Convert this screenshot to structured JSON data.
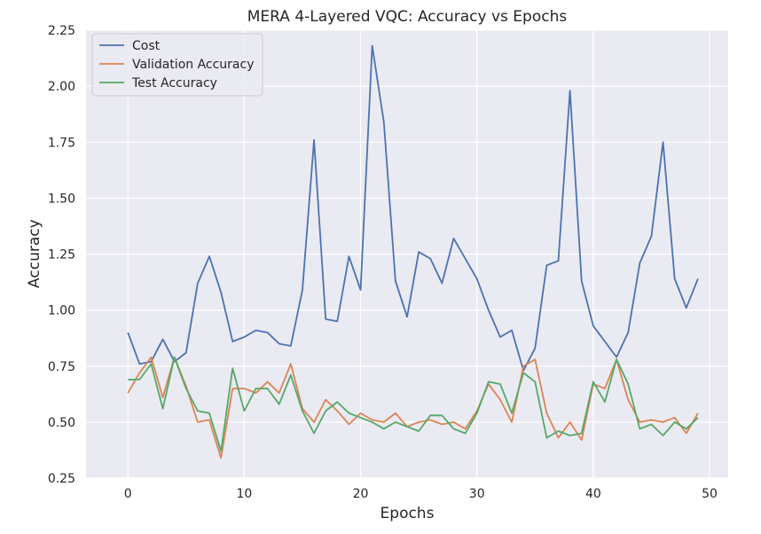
{
  "chart_data": {
    "type": "line",
    "title": "MERA 4-Layered VQC: Accuracy vs Epochs",
    "xlabel": "Epochs",
    "ylabel": "Accuracy",
    "xlim": [
      -3.6,
      51.6
    ],
    "ylim": [
      0.25,
      2.25
    ],
    "xticks": [
      "0",
      "10",
      "20",
      "30",
      "40",
      "50"
    ],
    "yticks": [
      "0.25",
      "0.50",
      "0.75",
      "1.00",
      "1.25",
      "1.50",
      "1.75",
      "2.00",
      "2.25"
    ],
    "grid": true,
    "legend_position": "top-left",
    "background": "#eaeaf2",
    "x": [
      0,
      1,
      2,
      3,
      4,
      5,
      6,
      7,
      8,
      9,
      10,
      11,
      12,
      13,
      14,
      15,
      16,
      17,
      18,
      19,
      20,
      21,
      22,
      23,
      24,
      25,
      26,
      27,
      28,
      29,
      30,
      31,
      32,
      33,
      34,
      35,
      36,
      37,
      38,
      39,
      40,
      41,
      42,
      43,
      44,
      45,
      46,
      47,
      48,
      49
    ],
    "series": [
      {
        "name": "Cost",
        "color": "#4c72b0",
        "values": [
          0.9,
          0.76,
          0.77,
          0.87,
          0.77,
          0.81,
          1.12,
          1.24,
          1.08,
          0.86,
          0.88,
          0.91,
          0.9,
          0.85,
          0.84,
          1.09,
          1.76,
          0.96,
          0.95,
          1.24,
          1.09,
          2.18,
          1.84,
          1.13,
          0.97,
          1.26,
          1.23,
          1.12,
          1.32,
          1.23,
          1.14,
          1.0,
          0.88,
          0.91,
          0.73,
          0.83,
          1.2,
          1.22,
          1.98,
          1.13,
          0.93,
          0.86,
          0.79,
          0.9,
          1.21,
          1.33,
          1.75,
          1.14,
          1.01,
          1.14
        ]
      },
      {
        "name": "Validation Accuracy",
        "color": "#dd8452",
        "values": [
          0.63,
          0.72,
          0.79,
          0.61,
          0.79,
          0.66,
          0.5,
          0.51,
          0.34,
          0.65,
          0.65,
          0.63,
          0.68,
          0.63,
          0.76,
          0.56,
          0.5,
          0.6,
          0.55,
          0.49,
          0.54,
          0.51,
          0.5,
          0.54,
          0.48,
          0.5,
          0.51,
          0.49,
          0.5,
          0.47,
          0.55,
          0.67,
          0.6,
          0.5,
          0.75,
          0.78,
          0.54,
          0.43,
          0.5,
          0.42,
          0.67,
          0.65,
          0.78,
          0.6,
          0.5,
          0.51,
          0.5,
          0.52,
          0.45,
          0.54
        ]
      },
      {
        "name": "Test Accuracy",
        "color": "#55a868",
        "values": [
          0.69,
          0.69,
          0.76,
          0.56,
          0.79,
          0.65,
          0.55,
          0.54,
          0.37,
          0.74,
          0.55,
          0.65,
          0.65,
          0.58,
          0.71,
          0.55,
          0.45,
          0.55,
          0.59,
          0.54,
          0.52,
          0.5,
          0.47,
          0.5,
          0.48,
          0.46,
          0.53,
          0.53,
          0.47,
          0.45,
          0.54,
          0.68,
          0.67,
          0.54,
          0.72,
          0.68,
          0.43,
          0.46,
          0.44,
          0.45,
          0.68,
          0.59,
          0.78,
          0.67,
          0.47,
          0.49,
          0.44,
          0.5,
          0.47,
          0.52
        ]
      }
    ]
  }
}
